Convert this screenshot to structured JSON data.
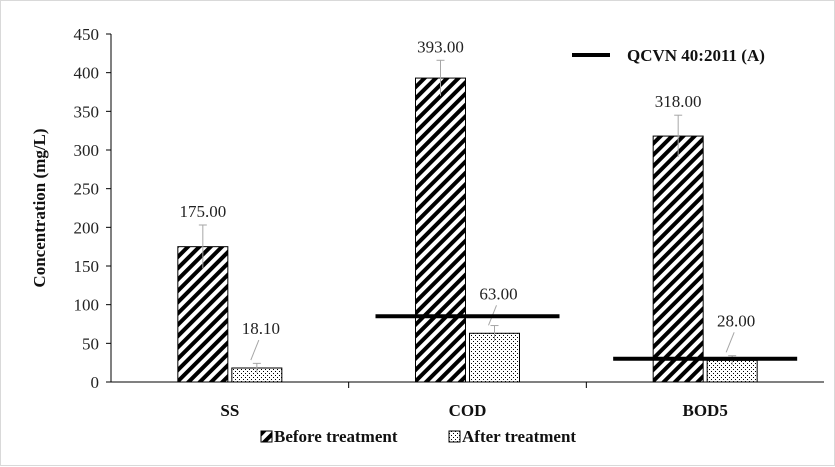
{
  "chart_data": {
    "type": "bar",
    "categories": [
      "SS",
      "COD",
      "BOD5"
    ],
    "series": [
      {
        "name": "Before treatment",
        "values": [
          175.0,
          393.0,
          318.0
        ],
        "errors": [
          28,
          23,
          27
        ],
        "labels": [
          "175.00",
          "393.00",
          "318.00"
        ],
        "pattern": "diagonal-hatch"
      },
      {
        "name": "After treatment",
        "values": [
          18.1,
          63.0,
          28.0
        ],
        "errors": [
          6,
          10,
          6
        ],
        "labels": [
          "18.10",
          "63.00",
          "28.00"
        ],
        "pattern": "dotted"
      }
    ],
    "reference_lines": [
      {
        "name": "QCVN 40:2011 (A)",
        "values": [
          null,
          85,
          30
        ]
      }
    ],
    "xlabel": "",
    "ylabel": "Concentration  (mg/L)",
    "ylim": [
      0,
      450
    ],
    "yticks": [
      0,
      50,
      100,
      150,
      200,
      250,
      300,
      350,
      400,
      450
    ],
    "grid": false,
    "legend_position": "bottom",
    "colors": {
      "bar_stroke": "#000000",
      "axis": "#000000",
      "error_bar": "#a6a6a6"
    }
  }
}
